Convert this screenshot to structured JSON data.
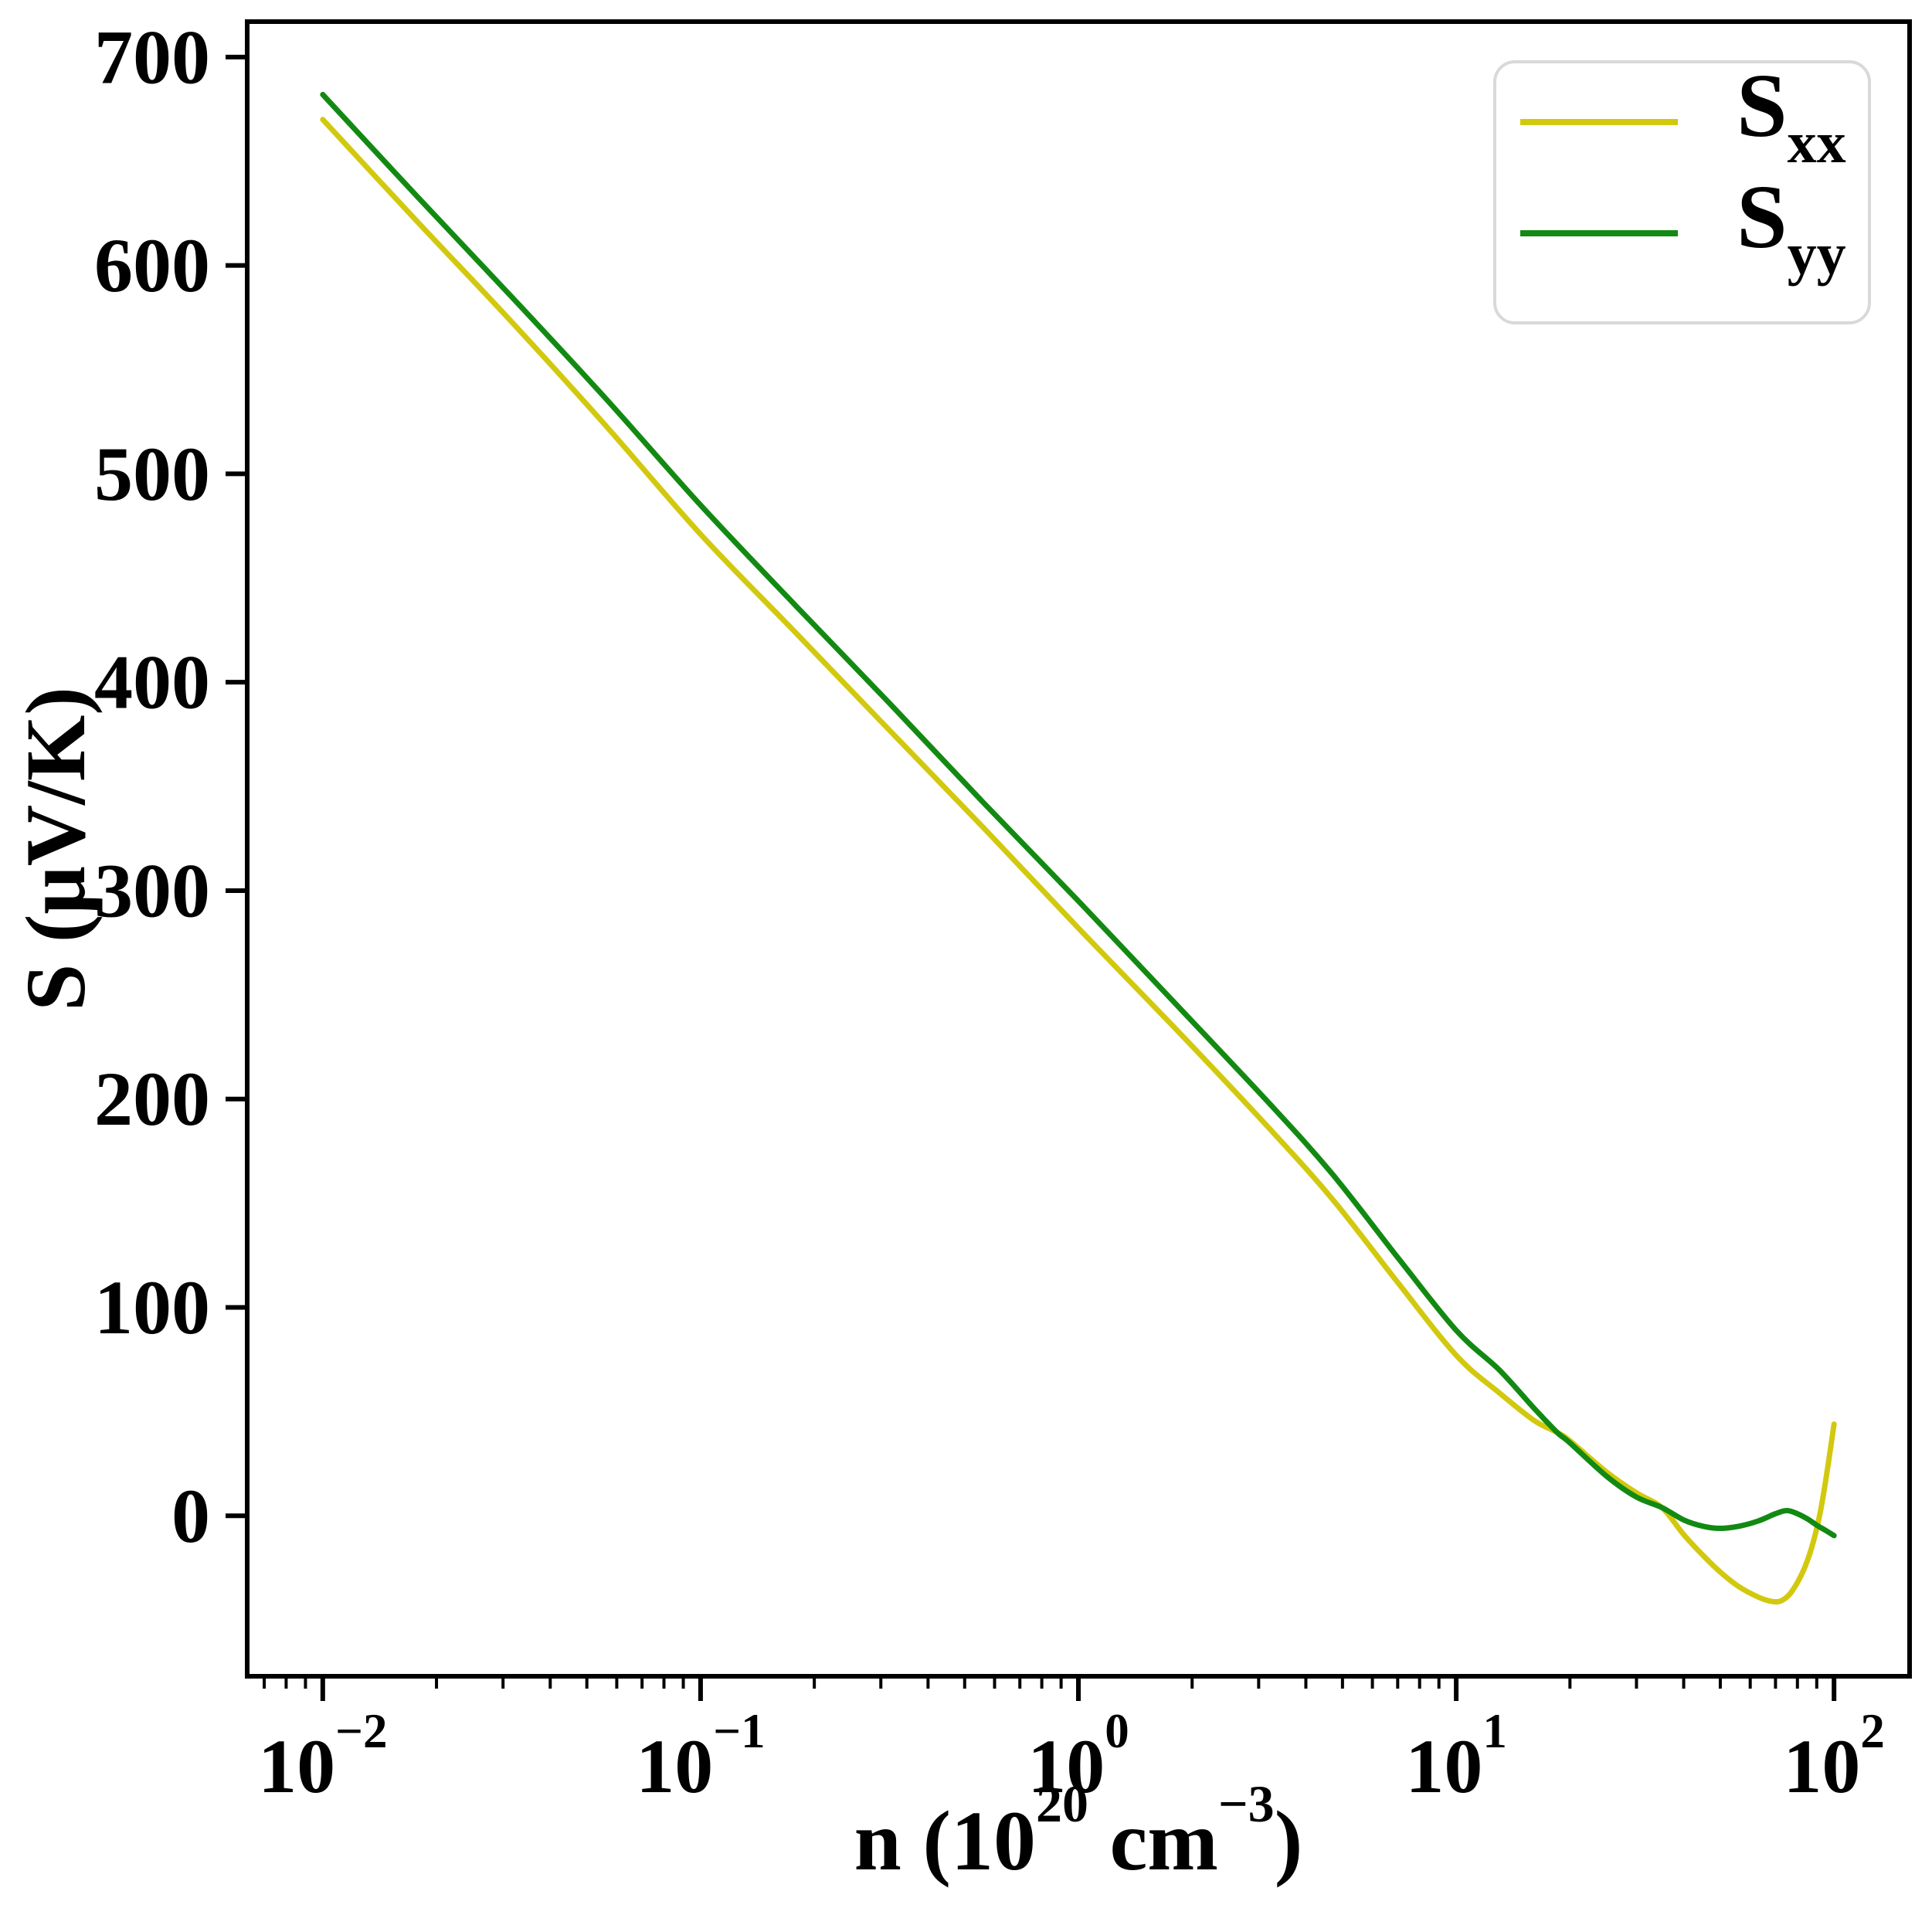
{
  "chart_data": {
    "type": "line",
    "title": "",
    "xlabel_segments": [
      {
        "t": "n (10"
      },
      {
        "t": "20",
        "sup": true
      },
      {
        "t": " cm",
        "sup": false
      },
      {
        "t": "−3",
        "sup": true
      },
      {
        "t": ")",
        "sup": false
      }
    ],
    "ylabel": "S (μV/K)",
    "x_scale": "log",
    "xlim_log10": [
      -2.2,
      2.2
    ],
    "ylim": [
      -77,
      717
    ],
    "grid": false,
    "x_major_ticks": [
      {
        "log10": -2,
        "base": "10",
        "exp": "−2"
      },
      {
        "log10": -1,
        "base": "10",
        "exp": "−1"
      },
      {
        "log10": 0,
        "base": "10",
        "exp": "0"
      },
      {
        "log10": 1,
        "base": "10",
        "exp": "1"
      },
      {
        "log10": 2,
        "base": "10",
        "exp": "2"
      }
    ],
    "y_ticks": [
      0,
      100,
      200,
      300,
      400,
      500,
      600,
      700
    ],
    "legend": {
      "position": "upper right",
      "entries": [
        {
          "base": "S",
          "sub": "xx",
          "color": "#d2c90f"
        },
        {
          "base": "S",
          "sub": "yy",
          "color": "#128a12"
        }
      ]
    },
    "series": [
      {
        "name": "S_xx",
        "color": "#d2c90f",
        "points": [
          [
            0.01,
            670
          ],
          [
            0.0178,
            621
          ],
          [
            0.0316,
            573
          ],
          [
            0.0562,
            523
          ],
          [
            0.1,
            471
          ],
          [
            0.178,
            424
          ],
          [
            0.316,
            377
          ],
          [
            0.562,
            330
          ],
          [
            1,
            282
          ],
          [
            1.78,
            235
          ],
          [
            3.16,
            187
          ],
          [
            4.7,
            152
          ],
          [
            7,
            112
          ],
          [
            10,
            77
          ],
          [
            13,
            59
          ],
          [
            16,
            46
          ],
          [
            18.5,
            40
          ],
          [
            20,
            36
          ],
          [
            25,
            21
          ],
          [
            30,
            11
          ],
          [
            35,
            4
          ],
          [
            40,
            -9
          ],
          [
            45,
            -19
          ],
          [
            50,
            -27
          ],
          [
            56,
            -34
          ],
          [
            63,
            -39
          ],
          [
            68,
            -41
          ],
          [
            72,
            -41
          ],
          [
            76,
            -38
          ],
          [
            80,
            -32
          ],
          [
            84,
            -24
          ],
          [
            88,
            -13
          ],
          [
            92,
            2
          ],
          [
            96,
            22
          ],
          [
            100,
            44
          ]
        ]
      },
      {
        "name": "S_yy",
        "color": "#128a12",
        "points": [
          [
            0.01,
            682
          ],
          [
            0.0178,
            633
          ],
          [
            0.0316,
            585
          ],
          [
            0.0562,
            536
          ],
          [
            0.1,
            485
          ],
          [
            0.178,
            437
          ],
          [
            0.316,
            390
          ],
          [
            0.562,
            342
          ],
          [
            1,
            295
          ],
          [
            1.78,
            247
          ],
          [
            3.16,
            199
          ],
          [
            4.7,
            164
          ],
          [
            7,
            124
          ],
          [
            10,
            89
          ],
          [
            13,
            70
          ],
          [
            16,
            52
          ],
          [
            18.5,
            40
          ],
          [
            20,
            35
          ],
          [
            25,
            19
          ],
          [
            30,
            9
          ],
          [
            35,
            4
          ],
          [
            40,
            -2
          ],
          [
            45,
            -5
          ],
          [
            50,
            -6
          ],
          [
            56,
            -5
          ],
          [
            63,
            -2.5
          ],
          [
            70,
            1
          ],
          [
            75,
            2.5
          ],
          [
            80,
            1
          ],
          [
            85,
            -1.5
          ],
          [
            90,
            -4.5
          ],
          [
            95,
            -7
          ],
          [
            100,
            -9.5
          ]
        ]
      }
    ]
  },
  "styles": {
    "spine_color": "#000000",
    "legend_border_color": "#d9d9d9",
    "background": "#ffffff"
  }
}
